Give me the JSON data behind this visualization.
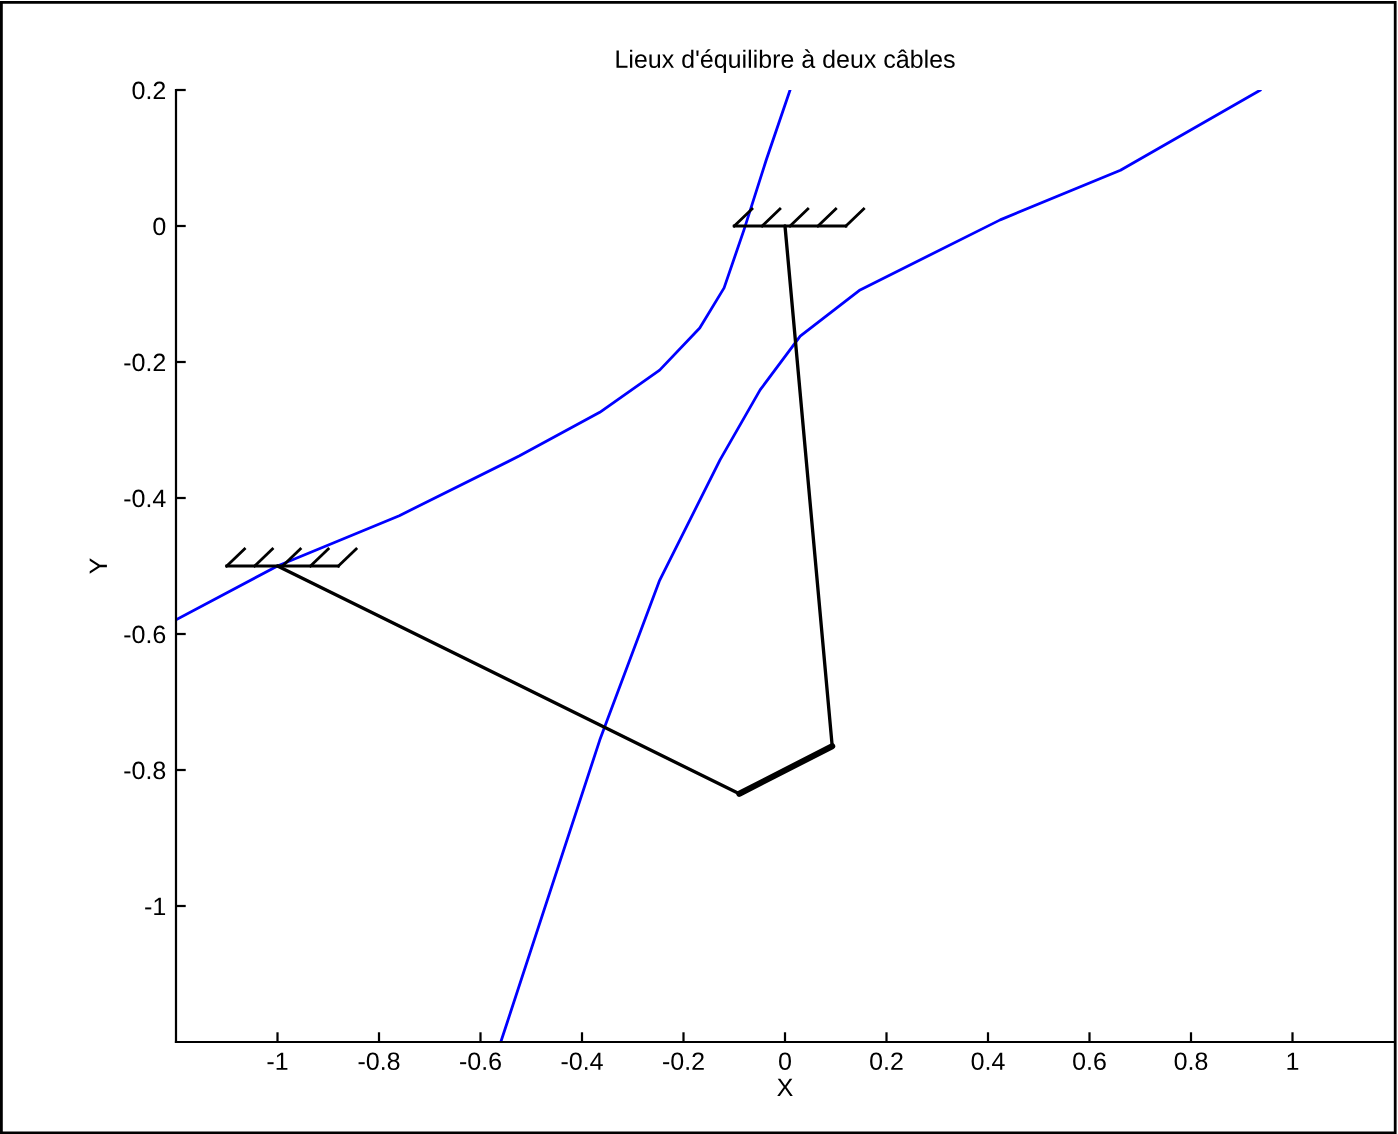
{
  "chart_data": {
    "type": "line",
    "title": "Lieux d'équilibre à deux câbles",
    "xlabel": "X",
    "ylabel": "Y",
    "xlim": [
      -1.2,
      1.2
    ],
    "ylim": [
      -1.2,
      0.2
    ],
    "xticks": [
      -1,
      -0.8,
      -0.6,
      -0.4,
      -0.2,
      0,
      0.2,
      0.4,
      0.6,
      0.8,
      1
    ],
    "yticks": [
      -1,
      -0.8,
      -0.6,
      -0.4,
      -0.2,
      0,
      0.2
    ],
    "grid": false,
    "legend": false,
    "marker": "none",
    "line_style": "solid",
    "series": [
      {
        "color": "#0000ff",
        "x": [
          -1.2,
          -1.0,
          -0.76,
          -0.523,
          -0.365,
          -0.247,
          -0.168,
          -0.12,
          -0.081,
          -0.037,
          0.01
        ],
        "values": [
          -0.579,
          -0.5,
          -0.426,
          -0.338,
          -0.274,
          -0.212,
          -0.15,
          -0.091,
          -0.006,
          0.097,
          0.2
        ]
      },
      {
        "color": "#0000ff",
        "x": [
          -0.56,
          -0.365,
          -0.247,
          -0.128,
          -0.049,
          0.03,
          0.148,
          0.424,
          0.661,
          0.937
        ],
        "values": [
          -1.2,
          -0.756,
          -0.521,
          -0.344,
          -0.241,
          -0.162,
          -0.094,
          0.009,
          0.082,
          0.2
        ]
      },
      {
        "color": "#000000",
        "x": [
          -1.0,
          -0.09
        ],
        "values": [
          -0.5,
          -0.835
        ]
      },
      {
        "color": "#000000",
        "x": [
          -0.09,
          0.093
        ],
        "values": [
          -0.835,
          -0.765
        ]
      },
      {
        "color": "#000000",
        "x": [
          0.093,
          0.0
        ],
        "values": [
          -0.765,
          0.0
        ]
      }
    ]
  }
}
